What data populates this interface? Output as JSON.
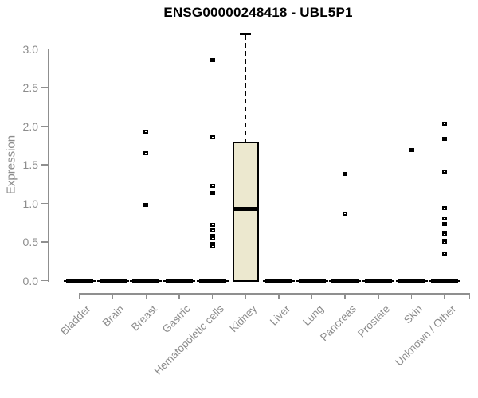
{
  "page": {
    "background": "#ffffff"
  },
  "chart_data": {
    "type": "boxplot",
    "title": "ENSG00000248418 - UBL5P1",
    "ylabel": "Expression",
    "xlabel": "",
    "ylim": [
      0,
      3.2
    ],
    "ytick_labels": [
      "0.0",
      "0.5",
      "1.0",
      "1.5",
      "2.0",
      "2.5",
      "3.0"
    ],
    "grid": false,
    "legend": null,
    "colors": {
      "box_fill": "#ece8cf",
      "box_stroke": "#000000",
      "axis": "#8f8f8f",
      "tick_label": "#8c8c8c",
      "title": "#000000"
    },
    "categories": [
      "Bladder",
      "Brain",
      "Breast",
      "Gastric",
      "Hematopoietic cells",
      "Kidney",
      "Liver",
      "Lung",
      "Pancreas",
      "Prostate",
      "Skin",
      "Unknown / Other"
    ],
    "boxes": [
      {
        "category": "Bladder",
        "median": 0,
        "q1": 0,
        "q3": 0,
        "whisker_low": 0,
        "whisker_high": 0,
        "outliers": []
      },
      {
        "category": "Brain",
        "median": 0,
        "q1": 0,
        "q3": 0,
        "whisker_low": 0,
        "whisker_high": 0,
        "outliers": []
      },
      {
        "category": "Breast",
        "median": 0,
        "q1": 0,
        "q3": 0,
        "whisker_low": 0,
        "whisker_high": 0,
        "outliers": [
          1.93,
          1.65,
          0.98
        ]
      },
      {
        "category": "Gastric",
        "median": 0,
        "q1": 0,
        "q3": 0,
        "whisker_low": 0,
        "whisker_high": 0,
        "outliers": []
      },
      {
        "category": "Hematopoietic cells",
        "median": 0,
        "q1": 0,
        "q3": 0,
        "whisker_low": 0,
        "whisker_high": 0,
        "outliers": [
          2.86,
          1.86,
          1.23,
          1.13,
          0.72,
          0.65,
          0.58,
          0.55,
          0.47,
          0.44
        ]
      },
      {
        "category": "Kidney",
        "median": 0.93,
        "q1": 0,
        "q3": 1.79,
        "whisker_low": 0,
        "whisker_high": 3.2,
        "outliers": []
      },
      {
        "category": "Liver",
        "median": 0,
        "q1": 0,
        "q3": 0,
        "whisker_low": 0,
        "whisker_high": 0,
        "outliers": []
      },
      {
        "category": "Lung",
        "median": 0,
        "q1": 0,
        "q3": 0,
        "whisker_low": 0,
        "whisker_high": 0,
        "outliers": []
      },
      {
        "category": "Pancreas",
        "median": 0,
        "q1": 0,
        "q3": 0,
        "whisker_low": 0,
        "whisker_high": 0,
        "outliers": [
          1.38,
          0.87
        ]
      },
      {
        "category": "Prostate",
        "median": 0,
        "q1": 0,
        "q3": 0,
        "whisker_low": 0,
        "whisker_high": 0,
        "outliers": []
      },
      {
        "category": "Skin",
        "median": 0,
        "q1": 0,
        "q3": 0,
        "whisker_low": 0,
        "whisker_high": 0,
        "outliers": [
          1.69
        ]
      },
      {
        "category": "Unknown / Other",
        "median": 0,
        "q1": 0,
        "q3": 0,
        "whisker_low": 0,
        "whisker_high": 0,
        "outliers": [
          2.03,
          1.84,
          1.41,
          0.94,
          0.8,
          0.73,
          0.62,
          0.6,
          0.52,
          0.5,
          0.35
        ]
      }
    ]
  }
}
